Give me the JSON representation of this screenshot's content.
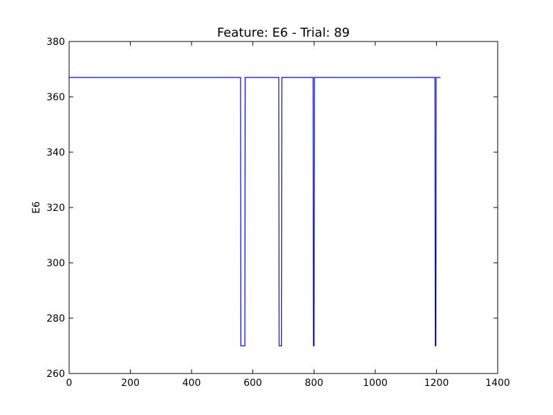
{
  "chart_data": {
    "type": "line",
    "title": "Feature: E6 - Trial: 89",
    "xlabel": "",
    "ylabel": "E6",
    "xlim": [
      0,
      1400
    ],
    "ylim": [
      260,
      380
    ],
    "grid": false,
    "legend": "none",
    "xticks": [
      0,
      200,
      400,
      600,
      800,
      1000,
      1200,
      1400
    ],
    "yticks": [
      260,
      280,
      300,
      320,
      340,
      360,
      380
    ],
    "series": [
      {
        "name": "E6",
        "color": "#0000ff",
        "x": [
          0,
          560,
          561,
          574,
          575,
          685,
          686,
          694,
          695,
          797,
          798,
          800,
          801,
          1195,
          1196,
          1198,
          1199,
          1205,
          1206,
          1213
        ],
        "y": [
          367,
          367,
          270,
          270,
          367,
          367,
          270,
          270,
          367,
          367,
          270,
          270,
          367,
          367,
          270,
          270,
          367,
          367,
          367,
          367
        ]
      }
    ]
  }
}
